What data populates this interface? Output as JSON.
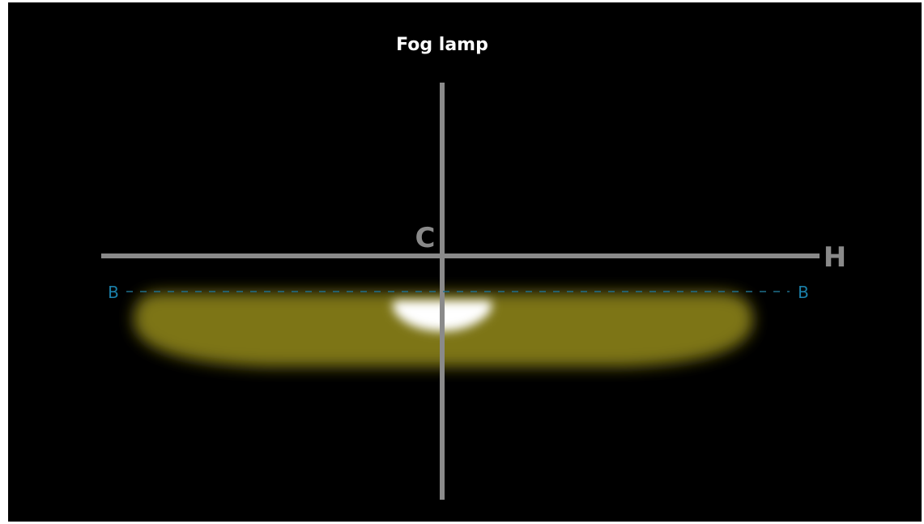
{
  "title": "Fog lamp",
  "labels": {
    "center": "C",
    "horizontal": "H",
    "cutoff_left": "B",
    "cutoff_right": "B"
  },
  "colors": {
    "background": "#000000",
    "axis": "#8a8a8a",
    "cutoff_line": "#1f6f8b",
    "cutoff_label": "#1a7fa8",
    "beam": "#7d7418",
    "hotspot": "#ffffff"
  }
}
